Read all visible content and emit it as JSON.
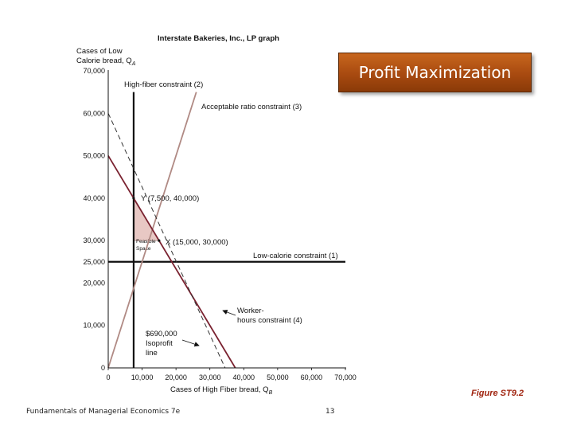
{
  "slide": {
    "banner_title": "Profit Maximization",
    "figure_label": "Figure ST9.2",
    "footer_text": "Fundamentals of Managerial Economics 7e",
    "page_number": "13",
    "banner_color": "#b0501a"
  },
  "chart_data": {
    "type": "line",
    "title": "Interstate Bakeries, Inc., LP graph",
    "ylabel_lines": [
      "Cases of Low",
      "Calorie bread, Q"
    ],
    "ylabel_subscript": "A",
    "xlabel": "Cases of High Fiber bread, Q",
    "xlabel_subscript": "B",
    "xlim": [
      0,
      70000
    ],
    "ylim": [
      0,
      70000
    ],
    "x_ticks": [
      0,
      10000,
      20000,
      30000,
      40000,
      50000,
      60000,
      70000
    ],
    "x_tick_labels": [
      "0",
      "10,000",
      "20,000",
      "30,000",
      "40,000",
      "50,000",
      "60,000",
      "70,000"
    ],
    "y_ticks": [
      0,
      10000,
      20000,
      25000,
      30000,
      40000,
      50000,
      60000,
      70000
    ],
    "y_tick_labels": [
      "0",
      "10,000",
      "20,000",
      "25,000",
      "30,000",
      "40,000",
      "50,000",
      "60,000",
      "70,000"
    ],
    "series": [
      {
        "name": "Low-calorie constraint (1)",
        "color": "#111111",
        "style": "solid",
        "x": [
          0,
          70000
        ],
        "y": [
          25000,
          25000
        ]
      },
      {
        "name": "High-fiber constraint (2)",
        "color": "#111111",
        "style": "solid",
        "x": [
          7500,
          7500
        ],
        "y": [
          0,
          65000
        ]
      },
      {
        "name": "Acceptable ratio constraint (3)",
        "color": "#b08a84",
        "style": "solid",
        "x": [
          0,
          26000
        ],
        "y": [
          0,
          65000
        ]
      },
      {
        "name": "Worker-hours constraint (4)",
        "color": "#7a2230",
        "style": "solid",
        "x": [
          0,
          37500
        ],
        "y": [
          50000,
          0
        ]
      },
      {
        "name": "$690,000 Isoprofit line",
        "color": "#333333",
        "style": "dashed",
        "x": [
          0,
          34500
        ],
        "y": [
          60000,
          0
        ]
      }
    ],
    "feasible_region": {
      "label_lines": [
        "Feasible",
        "Space"
      ],
      "fill": "#e8c8c4",
      "x": [
        7500,
        7500,
        15000
      ],
      "y": [
        30000,
        40000,
        30000
      ]
    },
    "points": [
      {
        "label": "Y (7,500, 40,000)",
        "x": 7500,
        "y": 40000
      },
      {
        "label": "X (15,000, 30,000)",
        "x": 15000,
        "y": 30000
      }
    ],
    "annotations": [
      {
        "text": "High-fiber constraint (2)"
      },
      {
        "text": "Acceptable ratio constraint (3)"
      },
      {
        "text": "Low-calorie constraint (1)"
      },
      {
        "lines": [
          "Worker-",
          "hours constraint (4)"
        ]
      },
      {
        "lines": [
          "$690,000",
          "Isoprofit",
          "line"
        ]
      }
    ]
  }
}
